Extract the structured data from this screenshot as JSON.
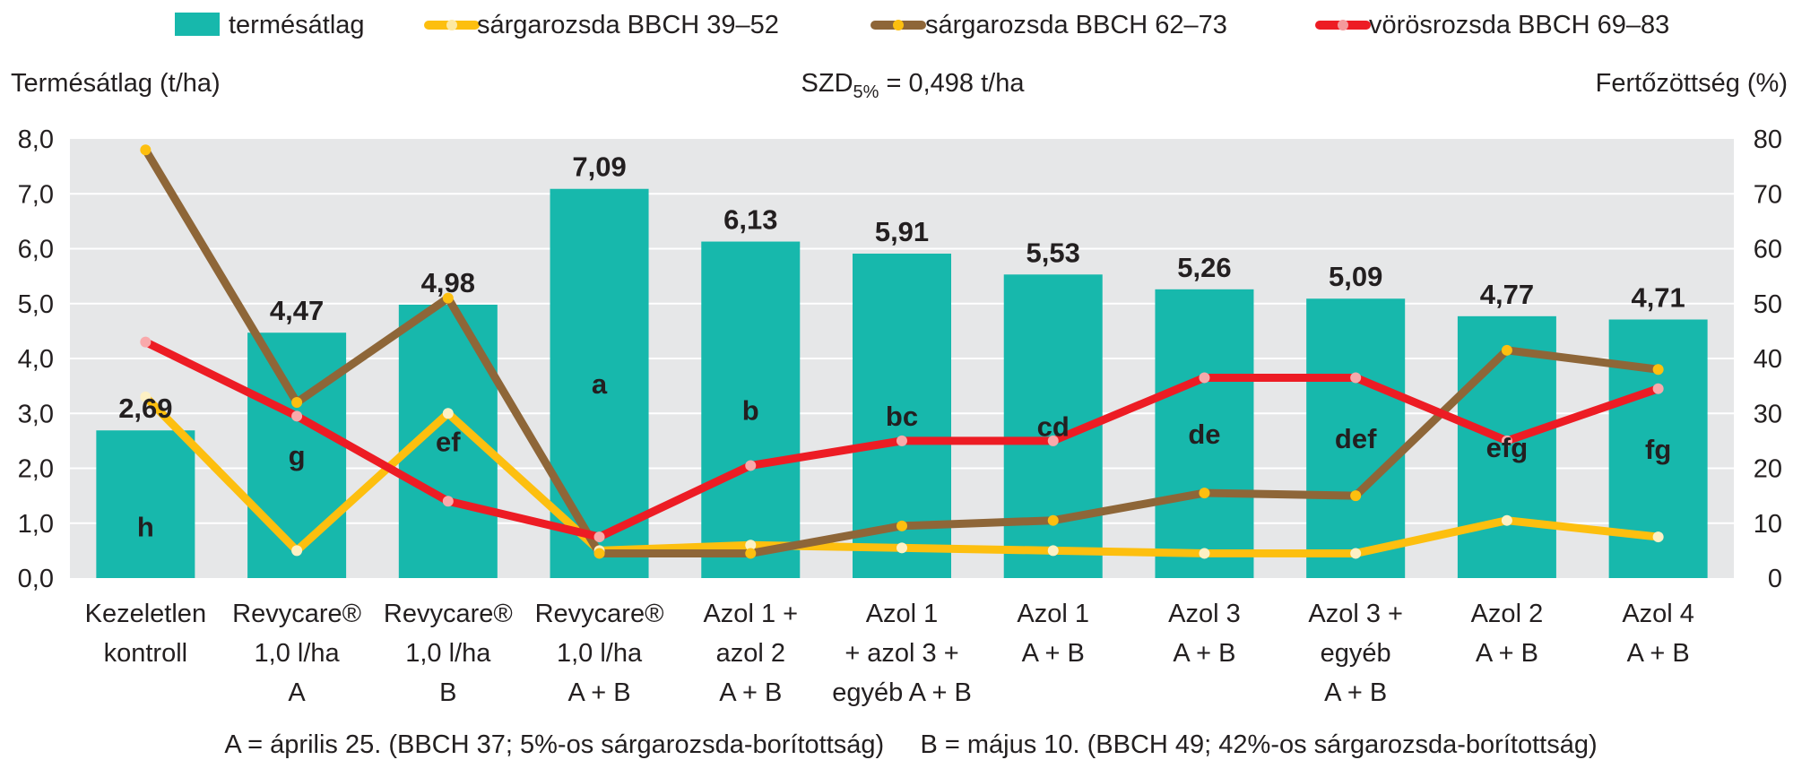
{
  "chart_data": {
    "type": "bar",
    "categories": [
      [
        "Kezeletlen",
        "kontroll"
      ],
      [
        "Revycare®",
        "1,0 l/ha",
        "A"
      ],
      [
        "Revycare®",
        "1,0 l/ha",
        "B"
      ],
      [
        "Revycare®",
        "1,0 l/ha",
        "A + B"
      ],
      [
        "Azol 1 +",
        "azol 2",
        "A + B"
      ],
      [
        "Azol 1",
        "+ azol 3 +",
        "egyéb A + B"
      ],
      [
        "Azol 1",
        "A + B"
      ],
      [
        "Azol 3",
        "A + B"
      ],
      [
        "Azol 3 +",
        "egyéb",
        "A + B"
      ],
      [
        "Azol 2",
        "A + B"
      ],
      [
        "Azol 4",
        "A + B"
      ]
    ],
    "bars": {
      "name": "termésátlag",
      "color": "#17b8ac",
      "values": [
        2.69,
        4.47,
        4.98,
        7.09,
        6.13,
        5.91,
        5.53,
        5.26,
        5.09,
        4.77,
        4.71
      ],
      "value_labels": [
        "2,69",
        "4,47",
        "4,98",
        "7,09",
        "6,13",
        "5,91",
        "5,53",
        "5,26",
        "5,09",
        "4,77",
        "4,71"
      ],
      "letters": [
        "h",
        "g",
        "ef",
        "a",
        "b",
        "bc",
        "cd",
        "de",
        "def",
        "efg",
        "fg"
      ]
    },
    "series": [
      {
        "name": "sárgarozsda BBCH 39–52",
        "color": "#fdbf0f",
        "axis": "right",
        "values": [
          33,
          5,
          30,
          5,
          6,
          5.5,
          5,
          4.5,
          4.5,
          10.5,
          7.5
        ]
      },
      {
        "name": "sárgarozsda BBCH 62–73",
        "color": "#8e6638",
        "axis": "right",
        "values": [
          78,
          32,
          51,
          4.5,
          4.5,
          9.5,
          10.5,
          15.5,
          15,
          41.5,
          38
        ]
      },
      {
        "name": "vörösrozsda BBCH 69–83",
        "color": "#ed1c24",
        "axis": "right",
        "values": [
          43,
          29.5,
          14,
          7.5,
          20.5,
          25,
          25,
          36.5,
          36.5,
          25,
          34.5
        ]
      }
    ],
    "ylabel_left": "Termésátlag (t/ha)",
    "ylabel_right": "Fertőzöttség (%)",
    "ylim_left": [
      0,
      8
    ],
    "ylim_right": [
      0,
      80
    ],
    "yticks_left": [
      "0,0",
      "1,0",
      "2,0",
      "3,0",
      "4,0",
      "5,0",
      "6,0",
      "7,0",
      "8,0"
    ],
    "yticks_right": [
      "0",
      "10",
      "20",
      "30",
      "40",
      "50",
      "60",
      "70",
      "80"
    ],
    "annotation": {
      "prefix": "SZD",
      "subscript": "5%",
      "suffix": " = 0,498 t/ha"
    },
    "footnote": "A = április 25. (BBCH 37; 5%-os sárgarozsda-borítottság)     B = május 10. (BBCH 49; 42%-os sárgarozsda-borítottság)",
    "legend_position": "top",
    "background": "#e6e7e8",
    "grid": true
  }
}
